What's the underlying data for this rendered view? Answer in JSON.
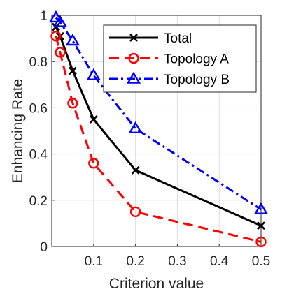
{
  "chart_data": {
    "type": "line",
    "title": "",
    "xlabel": "Criterion value",
    "ylabel": "Enhancing Rate",
    "xlim": [
      0,
      0.5
    ],
    "ylim": [
      0,
      1
    ],
    "grid": true,
    "legend_position": "top-right",
    "x_ticks": [
      "0.1",
      "0.2",
      "0.3",
      "0.4",
      "0.5"
    ],
    "y_ticks": [
      "0",
      "0.2",
      "0.4",
      "0.6",
      "0.8",
      "1"
    ],
    "x": [
      0.01,
      0.02,
      0.05,
      0.1,
      0.2,
      0.5
    ],
    "series": [
      {
        "name": "Total",
        "values": [
          0.95,
          0.91,
          0.76,
          0.55,
          0.33,
          0.09
        ],
        "color": "#000000",
        "line_style": "solid",
        "marker": "x"
      },
      {
        "name": "Topology A",
        "values": [
          0.91,
          0.84,
          0.62,
          0.36,
          0.15,
          0.02
        ],
        "color": "#ff0000",
        "line_style": "dashed",
        "marker": "circle"
      },
      {
        "name": "Topology B",
        "values": [
          0.99,
          0.97,
          0.89,
          0.74,
          0.51,
          0.16
        ],
        "color": "#0000ff",
        "line_style": "dash-dot",
        "marker": "triangle"
      }
    ]
  }
}
